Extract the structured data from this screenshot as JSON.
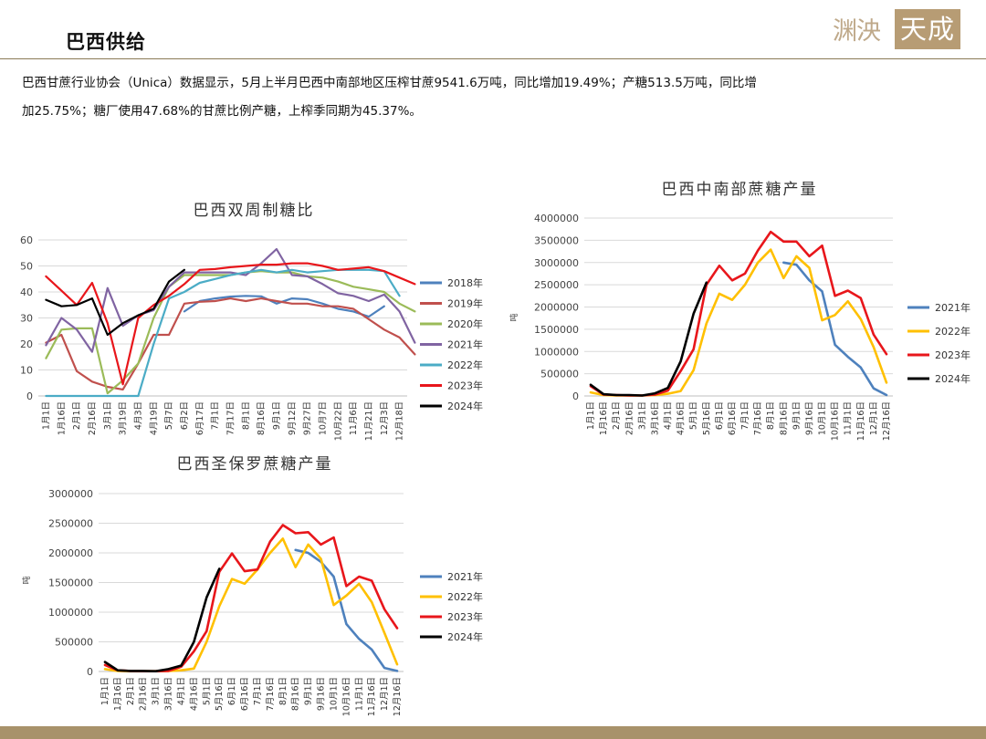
{
  "header": {
    "title": "巴西供给",
    "logo_left": "渊泱",
    "logo_right": "天成"
  },
  "summary": {
    "line1": "巴西甘蔗行业协会（Unica）数据显示，5月上半月巴西中南部地区压榨甘蔗9541.6万吨，同比增加19.49%；产糖513.5万吨，同比增",
    "line2": "加25.75%；糖厂使用47.68%的甘蔗比例产糖，上榨季同期为45.37%。"
  },
  "colors": {
    "2018": "#4e81bd",
    "2019": "#c0504d",
    "2020": "#9bbb59",
    "2021_ratio": "#8064a2",
    "2022_ratio": "#4bacc6",
    "2021_prod": "#4e81bd",
    "2022_prod": "#ffc000",
    "2023": "#e8161b",
    "2024": "#000000",
    "brand": "#b79c74"
  },
  "chart_data": [
    {
      "type": "line",
      "title": "巴西双周制糖比",
      "ylim": [
        0,
        60
      ],
      "yticks": [
        "0",
        "10",
        "20",
        "30",
        "40",
        "50",
        "60"
      ],
      "xlabels": [
        "1月1日",
        "1月16日",
        "2月1日",
        "2月16日",
        "3月1日",
        "3月19日",
        "4月3日",
        "4月19日",
        "5月7日",
        "6月2日",
        "6月17日",
        "7月1日",
        "7月17日",
        "8月1日",
        "8月16日",
        "9月1日",
        "9月12日",
        "9月27日",
        "10月7日",
        "10月22日",
        "11月6日",
        "11月21日",
        "12月3日",
        "12月18日"
      ],
      "n_points": 24,
      "legend_position": "right",
      "series": [
        {
          "name": "2018年",
          "color_key": "2018",
          "x": [
            9,
            10,
            11,
            12,
            13,
            14,
            15,
            16,
            17,
            18,
            19,
            20,
            21,
            22
          ],
          "values": [
            32.5,
            36.5,
            37.5,
            38.2,
            38.5,
            38.3,
            35.5,
            37.5,
            37.2,
            35.5,
            33.5,
            32.5,
            30.5,
            34.5
          ]
        },
        {
          "name": "2019年",
          "color_key": "2019",
          "x": [
            0,
            1,
            2,
            3,
            4,
            5,
            6,
            7,
            8,
            9,
            10,
            11,
            12,
            13,
            14,
            15,
            16,
            17,
            18,
            19,
            20,
            21,
            22,
            23,
            24
          ],
          "values": [
            20.5,
            23.5,
            9.5,
            5.5,
            3.5,
            2.5,
            12.5,
            23.5,
            23.5,
            35.5,
            36.2,
            36.5,
            37.5,
            36.5,
            37.5,
            36.5,
            35.5,
            35.5,
            34.5,
            34.5,
            33.5,
            29.5,
            25.5,
            22.5,
            16
          ]
        },
        {
          "name": "2020年",
          "color_key": "2020",
          "x": [
            0,
            1,
            2,
            3,
            4,
            5,
            6,
            7,
            8,
            9,
            10,
            11,
            12,
            13,
            14,
            15,
            16,
            17,
            18,
            19,
            20,
            21,
            22,
            23,
            24
          ],
          "values": [
            14.5,
            25.5,
            26,
            26,
            1,
            6,
            12.5,
            30,
            42,
            46.5,
            46.5,
            46.5,
            46.5,
            47.5,
            48,
            47.5,
            47.5,
            46,
            45.5,
            44,
            42,
            41,
            40,
            35.5,
            32.5
          ]
        },
        {
          "name": "2021年",
          "color_key": "2021_ratio",
          "x": [
            0,
            1,
            2,
            3,
            4,
            5,
            6,
            7,
            8,
            9,
            10,
            11,
            12,
            13,
            14,
            15,
            16,
            17,
            18,
            19,
            20,
            21,
            22,
            23,
            24
          ],
          "values": [
            19.5,
            30,
            25.5,
            17,
            41.5,
            27,
            31,
            33,
            42,
            47.5,
            47.5,
            47.5,
            47.5,
            46.5,
            51,
            56.5,
            46.5,
            46,
            43,
            39.5,
            38.5,
            36.5,
            39,
            32.5,
            20.5
          ]
        },
        {
          "name": "2022年",
          "color_key": "2022_ratio",
          "x": [
            0,
            1,
            2,
            3,
            4,
            5,
            6,
            7,
            8,
            9,
            10,
            11,
            12,
            13,
            14,
            15,
            16,
            17,
            18,
            19,
            20,
            21,
            22,
            23
          ],
          "values": [
            0,
            0,
            0,
            0,
            0,
            0,
            0,
            20,
            37.5,
            40,
            43.5,
            45,
            46.5,
            47.5,
            48.5,
            47.5,
            48.5,
            47.5,
            48,
            48.5,
            48.5,
            48.5,
            48,
            38.5
          ]
        },
        {
          "name": "2023年",
          "color_key": "2023",
          "x": [
            0,
            1,
            2,
            3,
            4,
            5,
            6,
            7,
            8,
            9,
            10,
            11,
            12,
            13,
            14,
            15,
            16,
            17,
            18,
            19,
            20,
            21,
            22,
            23,
            24
          ],
          "values": [
            46,
            40.5,
            35,
            43.5,
            28,
            4.5,
            30,
            35,
            38.5,
            43,
            48.5,
            48.8,
            49.5,
            50,
            50.5,
            50.5,
            51,
            51,
            50,
            48.5,
            49,
            49.5,
            48,
            45.5,
            43
          ]
        },
        {
          "name": "2024年",
          "color_key": "2024",
          "x": [
            0,
            1,
            2,
            3,
            4,
            5,
            6,
            7,
            8,
            9
          ],
          "values": [
            37,
            34.5,
            35,
            37.5,
            23.5,
            28,
            31,
            33.5,
            44,
            48.5
          ]
        }
      ]
    },
    {
      "type": "line",
      "title": "巴西中南部蔗糖产量",
      "ylabel": "吨",
      "ylim": [
        0,
        4000000
      ],
      "yticks": [
        "0",
        "500000",
        "1000000",
        "1500000",
        "2000000",
        "2500000",
        "3000000",
        "3500000",
        "4000000"
      ],
      "xlabels": [
        "1月1日",
        "1月16日",
        "2月1日",
        "2月16日",
        "3月1日",
        "3月16日",
        "4月1日",
        "4月16日",
        "5月1日",
        "5月16日",
        "6月1日",
        "6月16日",
        "7月1日",
        "7月16日",
        "8月1日",
        "8月16日",
        "9月1日",
        "9月16日",
        "10月1日",
        "10月16日",
        "11月1日",
        "11月16日",
        "12月1日",
        "12月16日"
      ],
      "n_points": 24,
      "legend_position": "right",
      "series": [
        {
          "name": "2021年",
          "color_key": "2021_prod",
          "x": [
            15,
            16,
            17,
            18,
            19,
            20,
            21,
            22,
            23
          ],
          "values": [
            3000000,
            2950000,
            2600000,
            2350000,
            1150000,
            880000,
            640000,
            170000,
            20000
          ]
        },
        {
          "name": "2022年",
          "color_key": "2022_prod",
          "x": [
            0,
            1,
            2,
            3,
            4,
            5,
            6,
            7,
            8,
            9,
            10,
            11,
            12,
            13,
            14,
            15,
            16,
            17,
            18,
            19,
            20,
            21,
            22,
            23
          ],
          "values": [
            80000,
            20000,
            10000,
            10000,
            10000,
            20000,
            50000,
            110000,
            580000,
            1630000,
            2300000,
            2160000,
            2500000,
            3000000,
            3290000,
            2650000,
            3140000,
            2880000,
            1700000,
            1820000,
            2130000,
            1730000,
            1100000,
            300000
          ]
        },
        {
          "name": "2023年",
          "color_key": "2023",
          "x": [
            0,
            1,
            2,
            3,
            4,
            5,
            6,
            7,
            8,
            9,
            10,
            11,
            12,
            13,
            14,
            15,
            16,
            17,
            18,
            19,
            20,
            21,
            22,
            23
          ],
          "values": [
            220000,
            30000,
            20000,
            10000,
            10000,
            30000,
            120000,
            560000,
            1050000,
            2500000,
            2930000,
            2600000,
            2750000,
            3270000,
            3690000,
            3470000,
            3470000,
            3140000,
            3380000,
            2250000,
            2370000,
            2200000,
            1380000,
            940000
          ]
        },
        {
          "name": "2024年",
          "color_key": "2024",
          "x": [
            0,
            1,
            2,
            3,
            4,
            5,
            6,
            7,
            8,
            9
          ],
          "values": [
            250000,
            40000,
            20000,
            20000,
            10000,
            60000,
            180000,
            780000,
            1850000,
            2550000
          ]
        }
      ]
    },
    {
      "type": "line",
      "title": "巴西圣保罗蔗糖产量",
      "ylabel": "吨",
      "ylim": [
        0,
        3000000
      ],
      "yticks": [
        "0",
        "500000",
        "1000000",
        "1500000",
        "2000000",
        "2500000",
        "3000000"
      ],
      "xlabels": [
        "1月1日",
        "1月16日",
        "2月1日",
        "2月16日",
        "3月1日",
        "3月16日",
        "4月1日",
        "4月16日",
        "5月1日",
        "5月16日",
        "6月1日",
        "6月16日",
        "7月1日",
        "7月16日",
        "8月1日",
        "8月16日",
        "9月1日",
        "9月16日",
        "10月1日",
        "10月16日",
        "11月1日",
        "11月16日",
        "12月1日",
        "12月16日"
      ],
      "n_points": 24,
      "legend_position": "right",
      "series": [
        {
          "name": "2021年",
          "color_key": "2021_prod",
          "x": [
            15,
            16,
            17,
            18,
            19,
            20,
            21,
            22,
            23
          ],
          "values": [
            2050000,
            2000000,
            1850000,
            1600000,
            800000,
            550000,
            370000,
            60000,
            10000
          ]
        },
        {
          "name": "2022年",
          "color_key": "2022_prod",
          "x": [
            0,
            1,
            2,
            3,
            4,
            5,
            6,
            7,
            8,
            9,
            10,
            11,
            12,
            13,
            14,
            15,
            16,
            17,
            18,
            19,
            20,
            21,
            22,
            23
          ],
          "values": [
            40000,
            10000,
            5000,
            5000,
            5000,
            10000,
            20000,
            50000,
            500000,
            1100000,
            1560000,
            1480000,
            1720000,
            2000000,
            2240000,
            1760000,
            2140000,
            1900000,
            1120000,
            1280000,
            1480000,
            1170000,
            650000,
            120000
          ]
        },
        {
          "name": "2023年",
          "color_key": "2023",
          "x": [
            0,
            1,
            2,
            3,
            4,
            5,
            6,
            7,
            8,
            9,
            10,
            11,
            12,
            13,
            14,
            15,
            16,
            17,
            18,
            19,
            20,
            21,
            22,
            23
          ],
          "values": [
            110000,
            20000,
            10000,
            5000,
            5000,
            10000,
            80000,
            340000,
            680000,
            1680000,
            1990000,
            1690000,
            1720000,
            2190000,
            2470000,
            2330000,
            2350000,
            2140000,
            2260000,
            1440000,
            1600000,
            1530000,
            1050000,
            730000
          ]
        },
        {
          "name": "2024年",
          "color_key": "2024",
          "x": [
            0,
            1,
            2,
            3,
            4,
            5,
            6,
            7,
            8,
            9
          ],
          "values": [
            160000,
            20000,
            10000,
            10000,
            5000,
            40000,
            100000,
            500000,
            1250000,
            1730000
          ]
        }
      ]
    }
  ]
}
